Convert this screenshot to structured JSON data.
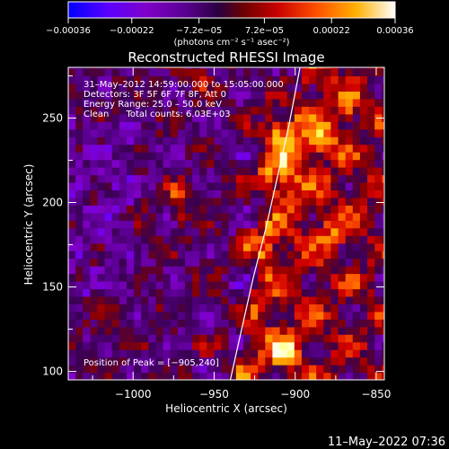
{
  "chart_data": {
    "type": "heatmap",
    "title": "Reconstructed RHESSI Image",
    "xlabel": "Heliocentric X (arcsec)",
    "ylabel": "Heliocentric Y (arcsec)",
    "xlim": [
      -1040,
      -845
    ],
    "ylim": [
      95,
      280
    ],
    "x_ticks": [
      -1000,
      -950,
      -900,
      -850
    ],
    "x_tick_labels": [
      "−1000",
      "−950",
      "−900",
      "−850"
    ],
    "y_ticks": [
      100,
      150,
      200,
      250
    ],
    "y_tick_labels": [
      "100",
      "150",
      "200",
      "250"
    ],
    "colorbar": {
      "min": -0.00036,
      "max": 0.00036,
      "ticks": [
        -0.00036,
        -0.00022,
        -7.2e-05,
        7.2e-05,
        0.00022,
        0.00036
      ],
      "tick_labels": [
        "−0.00036",
        "−0.00022",
        "−7.2e−05",
        "7.2e−05",
        "0.00022",
        "0.00036"
      ],
      "unit_label": "(photons cm⁻² s⁻¹ asec⁻²)",
      "colormap": [
        "#0000ff",
        "#6a00ff",
        "#8000c8",
        "#5a0090",
        "#3a0050",
        "#8a0000",
        "#d40000",
        "#ff5a00",
        "#ffb000",
        "#ffff60",
        "#ffffff"
      ]
    },
    "annotations": {
      "time": "31–May–2012 14:59:00.000 to 15:05:00.000",
      "detectors": "Detectors: 3F 5F 6F 7F 8F, Att 0",
      "energy": "Energy Range: 25.0 – 50.0 keV",
      "clean": "Clean      Total counts: 6.03E+03",
      "peak": "Position of Peak = [−905,240]"
    },
    "peak_position": [
      -905,
      240
    ],
    "limb_curve": {
      "x": [
        -940,
        -933,
        -926,
        -918,
        -911,
        -904,
        -897
      ],
      "y": [
        95,
        125,
        155,
        185,
        215,
        245,
        280
      ]
    },
    "image_grid": {
      "x_start": -1040,
      "y_start": 95,
      "pixel_size": 4.5
    }
  },
  "footer": {
    "timestamp": "11–May–2022 07:36"
  }
}
